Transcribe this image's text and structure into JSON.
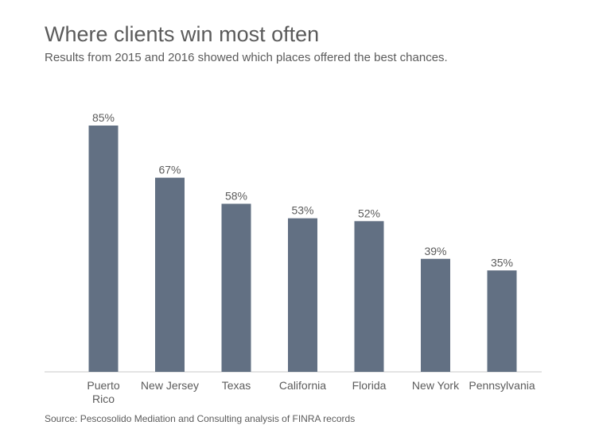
{
  "title": "Where clients win most often",
  "subtitle": "Results from 2015 and 2016 showed which places offered the best chances.",
  "source": "Source: Pescosolido Mediation and Consulting analysis of FINRA records",
  "colors": {
    "bar": "#627083",
    "axis": "#c8c8c8",
    "text": "#5b5b5b"
  },
  "chart_data": {
    "type": "bar",
    "categories": [
      "Puerto Rico",
      "New Jersey",
      "Texas",
      "California",
      "Florida",
      "New York",
      "Pennsylvania"
    ],
    "values": [
      85,
      67,
      58,
      53,
      52,
      39,
      35
    ],
    "value_labels": [
      "85%",
      "67%",
      "58%",
      "53%",
      "52%",
      "39%",
      "35%"
    ],
    "title": "Where clients win most often",
    "subtitle": "Results from 2015 and 2016 showed which places offered the best chances.",
    "xlabel": "",
    "ylabel": "",
    "ylim": [
      0,
      85
    ],
    "grid": false,
    "legend": "none"
  }
}
